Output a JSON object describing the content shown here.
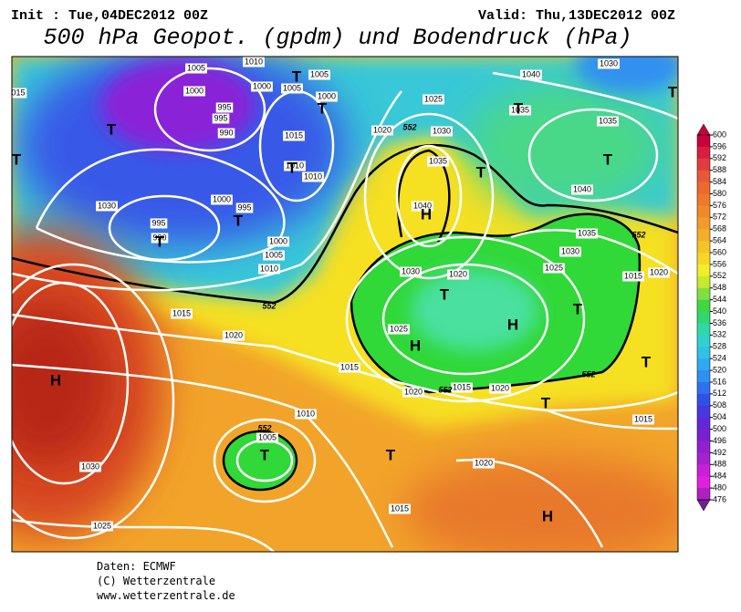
{
  "header": {
    "init": "Init : Tue,04DEC2012 00Z",
    "valid": "Valid: Thu,13DEC2012 00Z",
    "title": "500 hPa Geopot. (gpdm) und Bodendruck (hPa)"
  },
  "map": {
    "pressure_labels": [
      "015",
      "1005",
      "1010",
      "1005",
      "1000",
      "1000",
      "1005",
      "1000",
      "995",
      "995",
      "990",
      "1015",
      "1010",
      "1010",
      "1030",
      "1000",
      "995",
      "995",
      "990",
      "1000",
      "1005",
      "1010",
      "1015",
      "1020",
      "1015",
      "1010",
      "1005",
      "1030",
      "1025",
      "1015",
      "1020",
      "1015",
      "1020",
      "1020",
      "1025",
      "1030",
      "1020",
      "1020",
      "1030",
      "1035",
      "1040",
      "1025",
      "1040",
      "1030",
      "1035",
      "1035",
      "1040",
      "1035",
      "1030",
      "1025",
      "1015",
      "1020",
      "1015"
    ],
    "centers": [
      "H",
      "H",
      "H",
      "H",
      "H",
      "T",
      "T",
      "T",
      "T",
      "T",
      "T",
      "T",
      "T",
      "T",
      "T",
      "T",
      "T",
      "T",
      "T",
      "T",
      "T",
      "T"
    ],
    "contour_labels": [
      "552",
      "552",
      "552",
      "552",
      "552",
      "552"
    ]
  },
  "legend": {
    "labels": [
      600,
      596,
      592,
      588,
      584,
      580,
      576,
      572,
      568,
      564,
      560,
      556,
      552,
      548,
      544,
      540,
      536,
      532,
      528,
      524,
      520,
      516,
      512,
      508,
      504,
      500,
      496,
      492,
      488,
      484,
      480,
      476
    ]
  },
  "footer": {
    "source": "Daten: ECMWF",
    "copyright": "(C) Wetterzentrale",
    "url": "www.wetterzentrale.de"
  }
}
